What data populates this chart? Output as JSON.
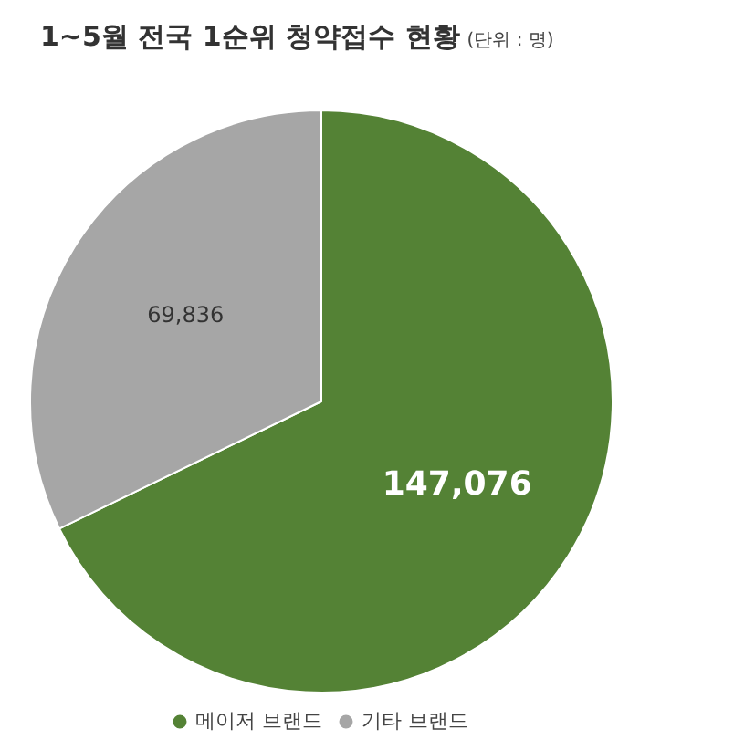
{
  "chart_data": {
    "type": "pie",
    "title": "1~5월 전국 1순위 청약접수 현황",
    "subtitle": "(단위 : 명)",
    "categories": [
      "메이저 브랜드",
      "기타 브랜드"
    ],
    "values": [
      147076,
      69836
    ],
    "colors": [
      "#548235",
      "#a6a6a6"
    ],
    "value_labels": [
      "147,076",
      "69,836"
    ],
    "legend": "bottom"
  }
}
